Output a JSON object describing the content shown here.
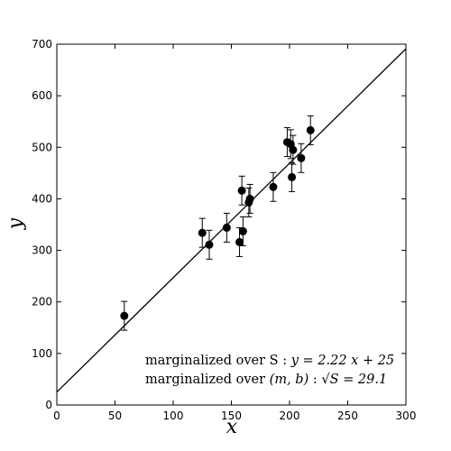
{
  "chart_data": {
    "type": "scatter",
    "title": "",
    "xlabel": "x",
    "ylabel": "y",
    "xlim": [
      0,
      300
    ],
    "ylim": [
      0,
      700
    ],
    "x_ticks": [
      0,
      50,
      100,
      150,
      200,
      250,
      300
    ],
    "y_ticks": [
      0,
      100,
      200,
      300,
      400,
      500,
      600,
      700
    ],
    "grid": false,
    "points": [
      {
        "x": 58,
        "y": 173,
        "err": 28
      },
      {
        "x": 125,
        "y": 334,
        "err": 28
      },
      {
        "x": 131,
        "y": 311,
        "err": 28
      },
      {
        "x": 146,
        "y": 344,
        "err": 28
      },
      {
        "x": 157,
        "y": 316,
        "err": 28
      },
      {
        "x": 159,
        "y": 416,
        "err": 28
      },
      {
        "x": 160,
        "y": 337,
        "err": 28
      },
      {
        "x": 165,
        "y": 393,
        "err": 28
      },
      {
        "x": 166,
        "y": 400,
        "err": 28
      },
      {
        "x": 186,
        "y": 423,
        "err": 28
      },
      {
        "x": 198,
        "y": 510,
        "err": 28
      },
      {
        "x": 201,
        "y": 506,
        "err": 28
      },
      {
        "x": 202,
        "y": 442,
        "err": 28
      },
      {
        "x": 203,
        "y": 495,
        "err": 28
      },
      {
        "x": 210,
        "y": 479,
        "err": 28
      },
      {
        "x": 218,
        "y": 533,
        "err": 28
      }
    ],
    "fit_line": {
      "slope": 2.22,
      "intercept": 25
    },
    "annotations": {
      "line1_text": "marginalized over S  :  ",
      "line1_eq": "y = 2.22 x + 25",
      "line2_text": "marginalized over ",
      "line2_params": "(m, b)",
      "line2_sep": "  :  ",
      "line2_eq": "S = 29.1"
    }
  }
}
